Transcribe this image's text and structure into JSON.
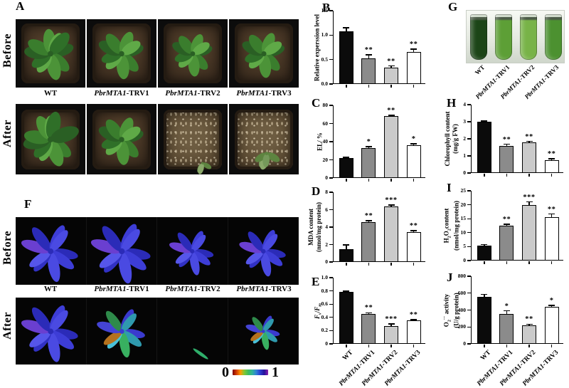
{
  "genotypes": [
    {
      "italic": "",
      "rest": "WT"
    },
    {
      "italic": "PbrMTA1",
      "rest": "-TRV1"
    },
    {
      "italic": "PbrMTA1",
      "rest": "-TRV2"
    },
    {
      "italic": "PbrMTA1",
      "rest": "-TRV3"
    }
  ],
  "bar_colors": [
    "#0b0b0b",
    "#8b8b8b",
    "#cacaca",
    "#ffffff"
  ],
  "panels": {
    "a": {
      "letter": "A",
      "row_labels": [
        "Before",
        "After"
      ],
      "before_plants": [
        {
          "size": 1.0,
          "leaves": 10
        },
        {
          "size": 0.95,
          "leaves": 9
        },
        {
          "size": 0.85,
          "leaves": 9
        },
        {
          "size": 0.9,
          "leaves": 9
        }
      ],
      "after_plants": [
        {
          "size": 1.05,
          "leaves": 11
        },
        {
          "size": 0.95,
          "leaves": 9
        },
        {
          "size": 0.42,
          "leaves": 3,
          "droop": true,
          "soil": "dry",
          "ox": 14,
          "oy": 22
        },
        {
          "size": 0.62,
          "leaves": 5,
          "droop": true,
          "soil": "dry",
          "ox": 4,
          "oy": 8
        }
      ]
    },
    "f": {
      "letter": "F",
      "row_labels": [
        "Before",
        "After"
      ],
      "before_leaves": [
        {
          "size": 1.0,
          "tint": "blue"
        },
        {
          "size": 1.05,
          "tint": "blue"
        },
        {
          "size": 0.78,
          "tint": "blue"
        },
        {
          "size": 0.82,
          "tint": "blue"
        }
      ],
      "after_leaves": [
        {
          "size": 1.0,
          "tint": "blue"
        },
        {
          "size": 0.85,
          "tint": "mixed"
        },
        {
          "size": 0.12,
          "tint": "sliver"
        },
        {
          "size": 0.6,
          "tint": "mixed"
        }
      ],
      "colorbar": {
        "min_label": "0",
        "max_label": "1",
        "colors": [
          "#7a0000",
          "#d43d00",
          "#ff9a00",
          "#7ec834",
          "#3dbc5e",
          "#2fb39a",
          "#2f7fd6",
          "#2a3bd0",
          "#22129a",
          "#8a1fae"
        ]
      }
    },
    "g": {
      "letter": "G",
      "tube_colors": [
        "#1c4517",
        "#5d9f36",
        "#78b348",
        "#4c9130"
      ]
    }
  },
  "palettes": {
    "plant": [
      "#2a5f24",
      "#3a7d2d",
      "#4c9338",
      "#5fa947",
      "#2f6f28"
    ],
    "droop": [
      "#5d8440",
      "#75985a",
      "#8aa86a"
    ],
    "blue": [
      "#2b2bb8",
      "#3d3dd6",
      "#4a4ae2",
      "#3131c4",
      "#5656ea",
      "#6a3fd0"
    ],
    "mixed": [
      "#3a3ace",
      "#2f9aae",
      "#38b060",
      "#49c0d8",
      "#b5721e",
      "#4444d4",
      "#2e8a4a"
    ],
    "sliver": [
      "#2fae6a"
    ]
  },
  "chart_data": [
    {
      "panel": "B",
      "type": "bar",
      "ylabel": "Relative experssion level",
      "ylabel_lines": [
        [
          {
            "t": "Relative experssion level"
          }
        ]
      ],
      "ylim": [
        0,
        1.5
      ],
      "yticks": [
        {
          "v": 0,
          "label": "0.0"
        },
        {
          "v": 0.5,
          "label": "0.5"
        },
        {
          "v": 1,
          "label": "1.0"
        },
        {
          "v": 1.5,
          "label": "1.5"
        }
      ],
      "categories": [
        "WT",
        "PbrMTA1-TRV1",
        "PbrMTA1-TRV2",
        "PbrMTA1-TRV3"
      ],
      "values": [
        1.08,
        0.52,
        0.33,
        0.66
      ],
      "errors": [
        0.07,
        0.08,
        0.04,
        0.05
      ],
      "significance": [
        "",
        "**",
        "**",
        "**"
      ],
      "show_x_labels": false
    },
    {
      "panel": "C",
      "type": "bar",
      "ylabel": "EL/ %",
      "ylabel_lines": [
        [
          {
            "t": "EL/ %"
          }
        ]
      ],
      "ylim": [
        0,
        80
      ],
      "yticks": [
        {
          "v": 0,
          "label": "0"
        },
        {
          "v": 20,
          "label": "20"
        },
        {
          "v": 40,
          "label": "40"
        },
        {
          "v": 60,
          "label": "60"
        },
        {
          "v": 80,
          "label": "80"
        }
      ],
      "categories": [
        "WT",
        "PbrMTA1-TRV1",
        "PbrMTA1-TRV2",
        "PbrMTA1-TRV3"
      ],
      "values": [
        22,
        33,
        68,
        36
      ],
      "errors": [
        0.8,
        1.5,
        1.2,
        1.5
      ],
      "significance": [
        "",
        "*",
        "**",
        "*"
      ],
      "show_x_labels": false
    },
    {
      "panel": "D",
      "type": "bar",
      "ylabel": "MDA content (nmol/mg protein)",
      "ylabel_lines": [
        [
          {
            "t": "MDA content"
          }
        ],
        [
          {
            "t": "(nmol/mg protein)"
          }
        ]
      ],
      "ylim": [
        0,
        8
      ],
      "yticks": [
        {
          "v": 0,
          "label": "0"
        },
        {
          "v": 2,
          "label": "2"
        },
        {
          "v": 4,
          "label": "4"
        },
        {
          "v": 6,
          "label": "6"
        },
        {
          "v": 8,
          "label": "8"
        }
      ],
      "categories": [
        "WT",
        "PbrMTA1-TRV1",
        "PbrMTA1-TRV2",
        "PbrMTA1-TRV3"
      ],
      "values": [
        1.5,
        4.6,
        6.4,
        3.4
      ],
      "errors": [
        0.45,
        0.12,
        0.15,
        0.2
      ],
      "significance": [
        "",
        "**",
        "***",
        "**"
      ],
      "show_x_labels": false
    },
    {
      "panel": "E",
      "type": "bar",
      "ylabel": "Fv/Fm",
      "ylabel_lines": [
        [
          {
            "t": "F",
            "i": true
          },
          {
            "t": "v",
            "sub": true,
            "i": true
          },
          {
            "t": "/"
          },
          {
            "t": "F",
            "i": true
          },
          {
            "t": "m",
            "sub": true,
            "i": true
          }
        ]
      ],
      "ylim": [
        0,
        1.0
      ],
      "yticks": [
        {
          "v": 0,
          "label": "0"
        },
        {
          "v": 0.2,
          "label": "0.2"
        },
        {
          "v": 0.4,
          "label": "0.4"
        },
        {
          "v": 0.6,
          "label": "0.6"
        },
        {
          "v": 0.8,
          "label": "0.8"
        },
        {
          "v": 1.0,
          "label": "1.0"
        }
      ],
      "categories": [
        "WT",
        "PbrMTA1-TRV1",
        "PbrMTA1-TRV2",
        "PbrMTA1-TRV3"
      ],
      "values": [
        0.79,
        0.45,
        0.27,
        0.35
      ],
      "errors": [
        0.008,
        0.02,
        0.03,
        0.015
      ],
      "significance": [
        "",
        "**",
        "***",
        "**"
      ],
      "show_x_labels": true
    },
    {
      "panel": "H",
      "type": "bar",
      "ylabel": "Chlorophyll content (mg/g FW)",
      "ylabel_lines": [
        [
          {
            "t": "Chlorophyll content"
          }
        ],
        [
          {
            "t": "(mg/g FW)"
          }
        ]
      ],
      "ylim": [
        0,
        4
      ],
      "yticks": [
        {
          "v": 0,
          "label": "0"
        },
        {
          "v": 1,
          "label": "1"
        },
        {
          "v": 2,
          "label": "2"
        },
        {
          "v": 3,
          "label": "3"
        },
        {
          "v": 4,
          "label": "4"
        }
      ],
      "categories": [
        "WT",
        "PbrMTA1-TRV1",
        "PbrMTA1-TRV2",
        "PbrMTA1-TRV3"
      ],
      "values": [
        3.0,
        1.6,
        1.8,
        0.75
      ],
      "errors": [
        0.04,
        0.08,
        0.05,
        0.08
      ],
      "significance": [
        "",
        "**",
        "**",
        "**"
      ],
      "show_x_labels": false
    },
    {
      "panel": "I",
      "type": "bar",
      "ylabel": "H2O2 content (nmol/mg protein)",
      "ylabel_lines": [
        [
          {
            "t": "H"
          },
          {
            "t": "2",
            "sub": true
          },
          {
            "t": "O"
          },
          {
            "t": "2",
            "sub": true
          },
          {
            "t": "content"
          }
        ],
        [
          {
            "t": "(nmol/mg protein)"
          }
        ]
      ],
      "ylim": [
        0,
        25
      ],
      "yticks": [
        {
          "v": 0,
          "label": "0"
        },
        {
          "v": 5,
          "label": "5"
        },
        {
          "v": 10,
          "label": "10"
        },
        {
          "v": 15,
          "label": "15"
        },
        {
          "v": 20,
          "label": "20"
        },
        {
          "v": 25,
          "label": "25"
        }
      ],
      "categories": [
        "WT",
        "PbrMTA1-TRV1",
        "PbrMTA1-TRV2",
        "PbrMTA1-TRV3"
      ],
      "values": [
        5.4,
        12.5,
        20,
        15.5
      ],
      "errors": [
        0.35,
        0.55,
        1.0,
        1.2
      ],
      "significance": [
        "",
        "**",
        "***",
        "**"
      ],
      "show_x_labels": false
    },
    {
      "panel": "J",
      "type": "bar",
      "ylabel": "O2·− activity (U/g protein)",
      "ylabel_lines": [
        [
          {
            "t": "O"
          },
          {
            "t": "2",
            "sub": true
          },
          {
            "t": "·−",
            "sup": true
          },
          {
            "t": " activity"
          }
        ],
        [
          {
            "t": "(U/g protein)"
          }
        ]
      ],
      "ylim": [
        0,
        800
      ],
      "yticks": [
        {
          "v": 0,
          "label": "0"
        },
        {
          "v": 200,
          "label": "200"
        },
        {
          "v": 400,
          "label": "400"
        },
        {
          "v": 600,
          "label": "600"
        },
        {
          "v": 800,
          "label": "800"
        }
      ],
      "categories": [
        "WT",
        "PbrMTA1-TRV1",
        "PbrMTA1-TRV2",
        "PbrMTA1-TRV3"
      ],
      "values": [
        560,
        350,
        220,
        435
      ],
      "errors": [
        25,
        40,
        12,
        18
      ],
      "significance": [
        "",
        "*",
        "**",
        "*"
      ],
      "show_x_labels": true
    }
  ]
}
